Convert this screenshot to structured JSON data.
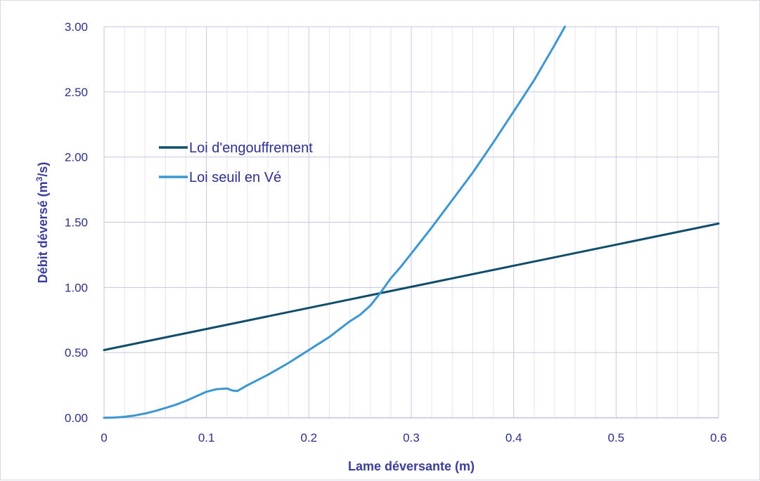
{
  "chart_data": {
    "type": "line",
    "title": "",
    "xlabel": "Lame déversante (m)",
    "ylabel_main": "Débit déversé (m",
    "ylabel_sup": "3",
    "ylabel_tail": "/s)",
    "xlim": [
      0,
      0.6
    ],
    "ylim": [
      0,
      3.0
    ],
    "x_ticks": [
      "0",
      "0.1",
      "0.2",
      "0.3",
      "0.4",
      "0.5",
      "0.6"
    ],
    "x_tick_values": [
      0,
      0.1,
      0.2,
      0.3,
      0.4,
      0.5,
      0.6
    ],
    "y_ticks": [
      "0.00",
      "0.50",
      "1.00",
      "1.50",
      "2.00",
      "2.50",
      "3.00"
    ],
    "y_tick_values": [
      0,
      0.5,
      1.0,
      1.5,
      2.0,
      2.5,
      3.0
    ],
    "x_minor_step": 0.02,
    "grid": true,
    "legend_position": "upper-left",
    "series": [
      {
        "name": "Loi d'engouffrement",
        "color": "#0f4d6b",
        "x": [
          0,
          0.6
        ],
        "y": [
          0.52,
          1.49
        ]
      },
      {
        "name": "Loi seuil en Vé",
        "color": "#3d96cf",
        "x": [
          0,
          0.01,
          0.02,
          0.03,
          0.04,
          0.05,
          0.06,
          0.07,
          0.08,
          0.09,
          0.1,
          0.11,
          0.12,
          0.125,
          0.13,
          0.14,
          0.15,
          0.16,
          0.17,
          0.18,
          0.19,
          0.2,
          0.21,
          0.22,
          0.23,
          0.24,
          0.25,
          0.26,
          0.27,
          0.28,
          0.29,
          0.3,
          0.32,
          0.34,
          0.36,
          0.38,
          0.4,
          0.42,
          0.44,
          0.45
        ],
        "y": [
          0,
          0.002,
          0.008,
          0.018,
          0.033,
          0.052,
          0.076,
          0.1,
          0.13,
          0.165,
          0.2,
          0.22,
          0.225,
          0.21,
          0.205,
          0.25,
          0.29,
          0.33,
          0.375,
          0.42,
          0.47,
          0.52,
          0.57,
          0.62,
          0.68,
          0.74,
          0.79,
          0.86,
          0.96,
          1.07,
          1.16,
          1.26,
          1.46,
          1.67,
          1.88,
          2.11,
          2.35,
          2.59,
          2.86,
          3.0
        ]
      }
    ]
  }
}
